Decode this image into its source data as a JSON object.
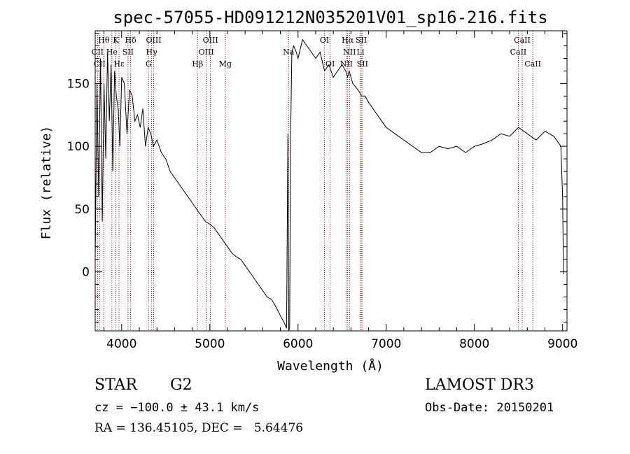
{
  "chart_data": {
    "type": "line",
    "title": "spec-57055-HD091212N035201V01_sp16-216.fits",
    "xlabel": "Wavelength (Å)",
    "ylabel": "Flux (relative)",
    "xlim": [
      3700,
      9050
    ],
    "ylim": [
      -47,
      192
    ],
    "x_ticks": [
      4000,
      5000,
      6000,
      7000,
      8000,
      9000
    ],
    "y_ticks": [
      0,
      50,
      100,
      150
    ],
    "line_color": "#000000",
    "marker_color": "#aa0000",
    "series": [
      {
        "x": [
          3700,
          3720,
          3740,
          3760,
          3780,
          3800,
          3820,
          3840,
          3860,
          3880,
          3900,
          3920,
          3940,
          3960,
          3980,
          4000,
          4030,
          4060,
          4090,
          4120,
          4150,
          4180,
          4210,
          4240,
          4270,
          4300,
          4330,
          4360,
          4400,
          4450,
          4500,
          4550,
          4600,
          4650,
          4700,
          4750,
          4800,
          4850,
          4900,
          4950,
          5000,
          5050,
          5100,
          5150,
          5200,
          5250,
          5300,
          5350,
          5400,
          5450,
          5500,
          5550,
          5600,
          5650,
          5700,
          5750,
          5800,
          5840,
          5870,
          5885,
          5895,
          5905,
          5915,
          5930,
          5950,
          5980,
          6000,
          6050,
          6100,
          6150,
          6200,
          6250,
          6300,
          6350,
          6400,
          6450,
          6500,
          6540,
          6563,
          6580,
          6620,
          6680,
          6720,
          6760,
          6800,
          6850,
          6900,
          6950,
          7000,
          7100,
          7200,
          7300,
          7400,
          7500,
          7600,
          7700,
          7800,
          7900,
          8000,
          8100,
          8200,
          8300,
          8400,
          8500,
          8600,
          8700,
          8800,
          8900,
          8980,
          9000,
          9010
        ],
        "y": [
          10,
          150,
          60,
          170,
          40,
          150,
          90,
          175,
          120,
          165,
          80,
          160,
          140,
          130,
          100,
          155,
          150,
          110,
          145,
          140,
          120,
          125,
          115,
          130,
          100,
          115,
          110,
          100,
          105,
          95,
          90,
          80,
          75,
          70,
          65,
          60,
          55,
          50,
          45,
          40,
          38,
          35,
          30,
          25,
          20,
          15,
          12,
          10,
          5,
          0,
          -5,
          -10,
          -15,
          -20,
          -22,
          -28,
          -35,
          -40,
          -45,
          110,
          -50,
          -45,
          100,
          175,
          180,
          175,
          170,
          185,
          180,
          175,
          170,
          175,
          160,
          165,
          155,
          160,
          165,
          160,
          155,
          160,
          150,
          145,
          140,
          140,
          135,
          130,
          125,
          120,
          115,
          110,
          105,
          100,
          95,
          95,
          100,
          98,
          100,
          95,
          100,
          102,
          105,
          110,
          108,
          115,
          110,
          105,
          112,
          108,
          100,
          60,
          -2
        ]
      }
    ],
    "lines": [
      {
        "label": "Hθ",
        "row": 1,
        "x": 3798
      },
      {
        "label": "K",
        "row": 1,
        "x": 3934
      },
      {
        "label": "Hδ",
        "row": 1,
        "x": 4102
      },
      {
        "label": "OIII",
        "row": 1,
        "x": 4363
      },
      {
        "label": "OIII",
        "row": 1,
        "x": 5007
      },
      {
        "label": "OI",
        "row": 1,
        "x": 6300
      },
      {
        "label": "Hα",
        "row": 1,
        "x": 6563
      },
      {
        "label": "SII",
        "row": 1,
        "x": 6717
      },
      {
        "label": "CaII",
        "row": 1,
        "x": 8542
      },
      {
        "label": "CII",
        "row": 2,
        "x": 3727
      },
      {
        "label": "He",
        "row": 2,
        "x": 3889
      },
      {
        "label": "SII",
        "row": 2,
        "x": 4072
      },
      {
        "label": "Hγ",
        "row": 2,
        "x": 4340
      },
      {
        "label": "OIII",
        "row": 2,
        "x": 4959
      },
      {
        "label": "Na",
        "row": 2,
        "x": 5893
      },
      {
        "label": "NII",
        "row": 2,
        "x": 6584
      },
      {
        "label": "Li",
        "row": 2,
        "x": 6708
      },
      {
        "label": "CaII",
        "row": 2,
        "x": 8498
      },
      {
        "label": "CII",
        "row": 3,
        "x": 3750
      },
      {
        "label": "Hε",
        "row": 3,
        "x": 3970
      },
      {
        "label": "G",
        "row": 3,
        "x": 4305
      },
      {
        "label": "Hβ",
        "row": 3,
        "x": 4861
      },
      {
        "label": "Mg",
        "row": 3,
        "x": 5175
      },
      {
        "label": "OI",
        "row": 3,
        "x": 6364
      },
      {
        "label": "NII",
        "row": 3,
        "x": 6548
      },
      {
        "label": "SII",
        "row": 3,
        "x": 6731
      },
      {
        "label": "CaII",
        "row": 3,
        "x": 8662
      }
    ]
  },
  "footer": {
    "class_label": "STAR",
    "subclass": "G2",
    "survey": "LAMOST DR3",
    "redshift": "cz = −100.0 ± 43.1 km/s",
    "obs_date": "Obs-Date: 20150201",
    "coords": "RA = 136.45105, DEC =   5.64476"
  }
}
